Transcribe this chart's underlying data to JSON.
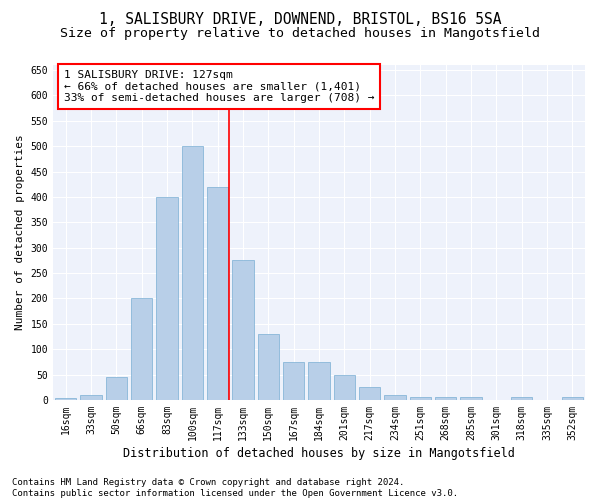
{
  "title1": "1, SALISBURY DRIVE, DOWNEND, BRISTOL, BS16 5SA",
  "title2": "Size of property relative to detached houses in Mangotsfield",
  "xlabel": "Distribution of detached houses by size in Mangotsfield",
  "ylabel": "Number of detached properties",
  "categories": [
    "16sqm",
    "33sqm",
    "50sqm",
    "66sqm",
    "83sqm",
    "100sqm",
    "117sqm",
    "133sqm",
    "150sqm",
    "167sqm",
    "184sqm",
    "201sqm",
    "217sqm",
    "234sqm",
    "251sqm",
    "268sqm",
    "285sqm",
    "301sqm",
    "318sqm",
    "335sqm",
    "352sqm"
  ],
  "values": [
    3,
    10,
    45,
    200,
    400,
    500,
    420,
    275,
    130,
    75,
    75,
    50,
    25,
    10,
    5,
    5,
    5,
    0,
    5,
    0,
    5
  ],
  "bar_color": "#b8cfe8",
  "bar_edge_color": "#7aafd4",
  "annotation_box_text": "1 SALISBURY DRIVE: 127sqm\n← 66% of detached houses are smaller (1,401)\n33% of semi-detached houses are larger (708) →",
  "ylim": [
    0,
    660
  ],
  "yticks": [
    0,
    50,
    100,
    150,
    200,
    250,
    300,
    350,
    400,
    450,
    500,
    550,
    600,
    650
  ],
  "background_color": "#eef2fb",
  "grid_color": "#ffffff",
  "footer_line1": "Contains HM Land Registry data © Crown copyright and database right 2024.",
  "footer_line2": "Contains public sector information licensed under the Open Government Licence v3.0.",
  "title1_fontsize": 10.5,
  "title2_fontsize": 9.5,
  "xlabel_fontsize": 8.5,
  "ylabel_fontsize": 8,
  "tick_fontsize": 7,
  "annot_fontsize": 8,
  "footer_fontsize": 6.5,
  "red_line_index": 6.43
}
